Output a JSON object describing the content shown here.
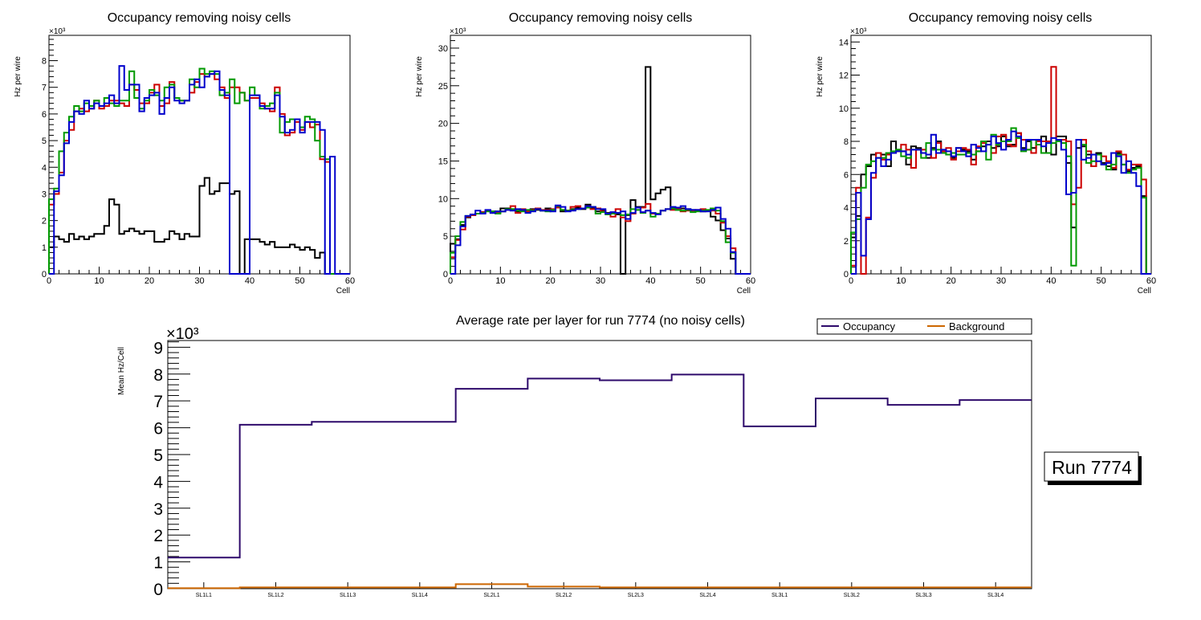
{
  "chart_data": [
    {
      "type": "line",
      "subtype": "step-histogram",
      "title": "Occupancy removing noisy cells",
      "xlabel": "Cell",
      "ylabel": "Hz per wire",
      "y_multiplier": "×10³",
      "xlim": [
        0,
        60
      ],
      "ylim": [
        0,
        8.95
      ],
      "xticks": [
        "0",
        "10",
        "20",
        "30",
        "40",
        "50",
        "60"
      ],
      "yticks": [
        "0",
        "1",
        "2",
        "3",
        "4",
        "5",
        "6",
        "7",
        "8"
      ],
      "ytick_values": [
        0,
        1,
        2,
        3,
        4,
        5,
        6,
        7,
        8
      ],
      "bins": 60,
      "series": [
        {
          "name": "black",
          "color": "#000000",
          "values": [
            1.0,
            1.4,
            1.3,
            1.2,
            1.5,
            1.3,
            1.4,
            1.3,
            1.4,
            1.5,
            1.5,
            1.8,
            2.8,
            2.6,
            1.5,
            1.6,
            1.7,
            1.6,
            1.5,
            1.6,
            1.6,
            1.2,
            1.2,
            1.3,
            1.6,
            1.5,
            1.3,
            1.5,
            1.4,
            1.4,
            3.3,
            3.6,
            3.0,
            3.1,
            3.4,
            3.4,
            3.0,
            3.1,
            0,
            1.3,
            1.3,
            1.3,
            1.2,
            1.1,
            1.2,
            1.0,
            1.0,
            1.0,
            1.1,
            1.0,
            0.9,
            1.0,
            0.9,
            0.6,
            0.8,
            0,
            0,
            0,
            0,
            0
          ]
        },
        {
          "name": "red",
          "color": "#cc0000",
          "values": [
            2.6,
            3.0,
            3.8,
            5.0,
            5.4,
            6.1,
            6.2,
            6.1,
            6.2,
            6.5,
            6.2,
            6.3,
            6.5,
            6.5,
            6.4,
            6.3,
            7.1,
            6.9,
            6.4,
            6.4,
            6.8,
            7.1,
            6.3,
            6.4,
            7.2,
            6.6,
            6.5,
            6.5,
            6.8,
            7.2,
            7.5,
            7.4,
            7.5,
            7.3,
            7.0,
            6.6,
            7.0,
            7.0,
            6.8,
            6.5,
            6.6,
            6.6,
            6.4,
            6.2,
            6.1,
            7.0,
            6.0,
            5.2,
            5.3,
            5.7,
            5.4,
            5.7,
            5.5,
            5.6,
            4.3,
            4.2,
            0,
            0,
            0,
            0
          ]
        },
        {
          "name": "green",
          "color": "#009900",
          "values": [
            2.8,
            3.2,
            4.6,
            5.3,
            5.9,
            6.3,
            6.1,
            6.4,
            6.3,
            6.5,
            6.3,
            6.6,
            6.4,
            6.3,
            6.5,
            6.5,
            7.6,
            6.6,
            6.2,
            6.5,
            6.9,
            6.7,
            6.5,
            7.0,
            7.1,
            6.6,
            6.5,
            6.5,
            7.3,
            7.0,
            7.7,
            7.5,
            7.6,
            7.5,
            6.7,
            6.8,
            7.3,
            6.4,
            6.8,
            6.5,
            7.0,
            6.7,
            6.2,
            6.3,
            6.4,
            6.8,
            5.3,
            5.7,
            5.8,
            5.8,
            5.5,
            5.9,
            5.8,
            5.0,
            4.4,
            4.3,
            0,
            0,
            0,
            0
          ]
        },
        {
          "name": "blue",
          "color": "#0000cc",
          "values": [
            0,
            3.1,
            3.7,
            4.9,
            5.7,
            6.1,
            6.0,
            6.5,
            6.2,
            6.4,
            6.3,
            6.4,
            6.7,
            6.4,
            7.8,
            6.9,
            7.1,
            7.1,
            6.1,
            6.6,
            6.7,
            6.8,
            6.0,
            6.6,
            7.0,
            6.5,
            6.4,
            6.5,
            7.1,
            7.3,
            7.0,
            7.4,
            7.5,
            7.6,
            6.9,
            6.7,
            0,
            0,
            0,
            0,
            6.7,
            6.7,
            6.3,
            6.2,
            6.2,
            6.7,
            5.9,
            5.3,
            5.4,
            5.8,
            5.3,
            5.7,
            5.7,
            5.7,
            5.4,
            0,
            4.4,
            0,
            0,
            0
          ]
        }
      ]
    },
    {
      "type": "line",
      "subtype": "step-histogram",
      "title": "Occupancy removing noisy cells",
      "xlabel": "Cell",
      "ylabel": "Hz per wire",
      "y_multiplier": "×10³",
      "xlim": [
        0,
        60
      ],
      "ylim": [
        0,
        31.7
      ],
      "xticks": [
        "0",
        "10",
        "20",
        "30",
        "40",
        "50",
        "60"
      ],
      "yticks": [
        "0",
        "5",
        "10",
        "15",
        "20",
        "25",
        "30"
      ],
      "ytick_values": [
        0,
        5,
        10,
        15,
        20,
        25,
        30
      ],
      "bins": 60,
      "series": [
        {
          "name": "black",
          "color": "#000000",
          "values": [
            4.0,
            4.6,
            6.5,
            7.5,
            7.8,
            8.0,
            8.2,
            8.4,
            8.1,
            8.3,
            8.7,
            8.7,
            8.6,
            8.3,
            8.4,
            8.3,
            8.6,
            8.5,
            8.4,
            8.7,
            8.5,
            8.8,
            8.3,
            8.4,
            8.6,
            8.8,
            8.6,
            9.2,
            8.8,
            8.3,
            8.4,
            8.1,
            8.1,
            7.9,
            0,
            7.8,
            9.8,
            8.9,
            8.9,
            27.5,
            9.9,
            10.7,
            11.2,
            11.5,
            8.7,
            8.5,
            8.7,
            8.6,
            8.5,
            8.4,
            8.3,
            8.4,
            7.6,
            7.1,
            5.8,
            4.7,
            2.0,
            0,
            0,
            0
          ]
        },
        {
          "name": "red",
          "color": "#cc0000",
          "values": [
            2.2,
            4.5,
            5.9,
            7.6,
            7.8,
            8.0,
            8.2,
            8.4,
            8.3,
            8.1,
            8.3,
            8.5,
            9.0,
            8.1,
            8.6,
            8.3,
            8.5,
            8.7,
            8.5,
            8.5,
            8.6,
            8.8,
            8.5,
            8.4,
            8.9,
            9.0,
            8.7,
            9.0,
            8.6,
            8.7,
            8.3,
            8.0,
            7.6,
            8.6,
            7.5,
            7.0,
            8.0,
            8.5,
            8.8,
            9.3,
            8.0,
            8.0,
            8.4,
            8.6,
            8.5,
            8.6,
            8.3,
            8.4,
            8.4,
            8.5,
            8.6,
            8.4,
            8.4,
            8.0,
            6.8,
            5.0,
            3.4,
            0,
            0,
            0
          ]
        },
        {
          "name": "green",
          "color": "#009900",
          "values": [
            2.8,
            5.0,
            6.9,
            7.7,
            7.9,
            8.0,
            8.1,
            8.3,
            8.3,
            8.0,
            8.3,
            8.6,
            8.6,
            8.4,
            8.3,
            8.5,
            8.4,
            8.6,
            8.4,
            8.3,
            8.5,
            9.0,
            8.5,
            8.4,
            8.5,
            8.6,
            8.7,
            8.8,
            8.9,
            8.0,
            8.2,
            7.9,
            8.0,
            8.1,
            7.8,
            7.9,
            8.6,
            8.5,
            8.1,
            8.4,
            7.6,
            8.0,
            8.4,
            8.6,
            8.7,
            8.5,
            8.4,
            8.5,
            8.2,
            8.3,
            8.4,
            8.5,
            8.7,
            8.4,
            7.0,
            4.2,
            2.8,
            0,
            0,
            0
          ]
        },
        {
          "name": "blue",
          "color": "#0000cc",
          "values": [
            0,
            3.8,
            6.3,
            7.7,
            7.9,
            8.4,
            8.0,
            8.5,
            8.1,
            8.3,
            8.3,
            8.5,
            8.4,
            8.6,
            8.5,
            8.1,
            8.3,
            8.6,
            8.4,
            8.4,
            8.3,
            9.1,
            8.9,
            8.3,
            8.4,
            8.6,
            8.7,
            9.0,
            8.9,
            8.6,
            8.6,
            8.0,
            8.2,
            8.1,
            8.3,
            7.3,
            8.1,
            8.8,
            8.2,
            8.4,
            8.1,
            7.9,
            8.4,
            8.6,
            8.9,
            8.8,
            9.0,
            8.6,
            8.5,
            8.5,
            8.3,
            8.3,
            8.5,
            8.8,
            7.3,
            6.0,
            2.9,
            0,
            0,
            0
          ]
        }
      ]
    },
    {
      "type": "line",
      "subtype": "step-histogram",
      "title": "Occupancy removing noisy cells",
      "xlabel": "Cell",
      "ylabel": "Hz per wire",
      "y_multiplier": "×10³",
      "xlim": [
        0,
        60
      ],
      "ylim": [
        0,
        14.4
      ],
      "xticks": [
        "0",
        "10",
        "20",
        "30",
        "40",
        "50",
        "60"
      ],
      "yticks": [
        "0",
        "2",
        "4",
        "6",
        "8",
        "10",
        "12",
        "14"
      ],
      "ytick_values": [
        0,
        2,
        4,
        6,
        8,
        10,
        12,
        14
      ],
      "bins": 60,
      "series": [
        {
          "name": "black",
          "color": "#000000",
          "values": [
            2.2,
            3.5,
            6.0,
            6.5,
            7.2,
            7.3,
            7.2,
            6.5,
            8.0,
            7.5,
            7.4,
            6.6,
            7.7,
            7.6,
            7.3,
            7.0,
            7.6,
            8.0,
            7.3,
            7.2,
            7.0,
            7.6,
            7.5,
            7.4,
            6.9,
            7.4,
            7.7,
            8.0,
            7.6,
            7.7,
            8.3,
            7.7,
            7.8,
            8.5,
            7.6,
            8.0,
            7.6,
            8.0,
            8.3,
            7.3,
            7.2,
            8.3,
            8.3,
            6.7,
            2.8,
            7.6,
            7.7,
            7.2,
            6.5,
            7.3,
            6.7,
            6.5,
            6.3,
            7.3,
            6.6,
            6.2,
            6.4,
            6.5,
            4.7,
            0
          ]
        },
        {
          "name": "red",
          "color": "#cc0000",
          "values": [
            0.5,
            5.2,
            0,
            3.4,
            5.8,
            7.3,
            6.9,
            7.2,
            7.3,
            7.4,
            7.8,
            7.5,
            6.4,
            7.5,
            7.5,
            7.2,
            7.0,
            7.9,
            7.4,
            7.6,
            6.9,
            7.4,
            7.6,
            7.5,
            6.6,
            7.7,
            7.9,
            7.8,
            7.3,
            8.3,
            8.4,
            7.8,
            7.7,
            8.5,
            8.1,
            7.5,
            7.3,
            8.0,
            8.0,
            8.0,
            12.5,
            8.0,
            8.1,
            8.0,
            4.2,
            5.2,
            8.1,
            7.4,
            6.5,
            7.2,
            7.1,
            6.8,
            6.4,
            7.4,
            7.2,
            6.3,
            6.6,
            6.6,
            5.7,
            0
          ]
        },
        {
          "name": "green",
          "color": "#009900",
          "values": [
            2.5,
            3.3,
            5.2,
            6.6,
            6.8,
            7.0,
            7.0,
            7.3,
            7.4,
            7.5,
            7.1,
            7.0,
            7.5,
            7.5,
            7.0,
            7.9,
            7.5,
            7.5,
            7.3,
            7.2,
            7.3,
            7.2,
            7.2,
            7.3,
            7.2,
            7.4,
            8.0,
            6.9,
            8.4,
            7.8,
            8.0,
            8.0,
            8.8,
            8.2,
            7.4,
            7.5,
            8.1,
            7.8,
            7.3,
            7.3,
            7.9,
            8.0,
            7.9,
            7.1,
            0.5,
            8.1,
            7.8,
            6.7,
            6.8,
            7.2,
            6.6,
            6.3,
            6.6,
            7.2,
            6.6,
            6.1,
            6.3,
            6.4,
            4.6,
            0
          ]
        },
        {
          "name": "blue",
          "color": "#0000cc",
          "values": [
            0,
            4.9,
            1.1,
            3.3,
            6.1,
            7.0,
            6.5,
            6.9,
            7.3,
            7.4,
            7.4,
            7.2,
            7.5,
            7.5,
            7.3,
            7.2,
            8.4,
            7.3,
            7.5,
            7.4,
            7.1,
            7.6,
            7.4,
            7.1,
            7.8,
            7.6,
            7.4,
            7.8,
            8.3,
            7.9,
            7.5,
            8.1,
            8.6,
            8.3,
            7.5,
            8.1,
            8.1,
            8.1,
            7.7,
            7.9,
            8.2,
            8.1,
            7.5,
            4.8,
            4.9,
            8.1,
            6.9,
            7.0,
            7.2,
            6.8,
            6.6,
            6.7,
            7.3,
            7.1,
            6.1,
            6.8,
            6.1,
            5.3,
            0,
            0
          ]
        }
      ]
    },
    {
      "type": "line",
      "subtype": "step-histogram",
      "title": "Average rate per layer for run 7774 (no noisy cells)",
      "xlabel": "",
      "ylabel": "Mean Hz/Cell",
      "y_multiplier": "×10³",
      "ylim": [
        0,
        9.25
      ],
      "yticks": [
        "0",
        "1",
        "2",
        "3",
        "4",
        "5",
        "6",
        "7",
        "8",
        "9"
      ],
      "ytick_values": [
        0,
        1,
        2,
        3,
        4,
        5,
        6,
        7,
        8,
        9
      ],
      "categories": [
        "SL1L1",
        "SL1L2",
        "SL1L3",
        "SL1L4",
        "SL2L1",
        "SL2L2",
        "SL2L3",
        "SL2L4",
        "SL3L1",
        "SL3L2",
        "SL3L3",
        "SL3L4"
      ],
      "legend": {
        "placement": "top-right",
        "entries": [
          "Occupancy",
          "Background"
        ]
      },
      "series": [
        {
          "name": "Occupancy",
          "color": "#2e0a6b",
          "values": [
            1.16,
            6.11,
            6.22,
            6.22,
            7.45,
            7.83,
            7.77,
            7.98,
            6.05,
            7.09,
            6.85,
            7.03
          ]
        },
        {
          "name": "Background",
          "color": "#cc6600",
          "values": [
            0.02,
            0.05,
            0.05,
            0.05,
            0.17,
            0.08,
            0.05,
            0.05,
            0.05,
            0.05,
            0.05,
            0.05
          ]
        }
      ],
      "annotation": "Run 7774"
    }
  ]
}
